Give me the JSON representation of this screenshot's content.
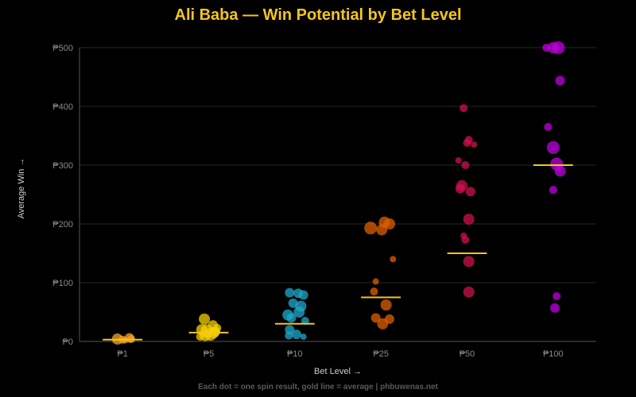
{
  "chart_data": {
    "type": "scatter",
    "title": "Ali Baba — Win Potential by Bet Level",
    "xlabel": "Bet Level →",
    "ylabel": "Average Win →",
    "footer": "Each dot = one spin result, gold line = average | phbuwenas.net",
    "ylim": [
      0,
      500
    ],
    "yticks": [
      "₱0",
      "₱100",
      "₱200",
      "₱300",
      "₱400",
      "₱500"
    ],
    "ytick_values": [
      0,
      100,
      200,
      300,
      400,
      500
    ],
    "grid": true,
    "average_line_color": "#f5c518",
    "categories": [
      {
        "label": "₱1",
        "color": "#f5a623",
        "average": 3,
        "points": [
          [
            -0.06,
            4,
            7
          ],
          [
            0.0,
            3,
            5
          ],
          [
            0.08,
            6,
            6
          ],
          [
            0.1,
            4,
            5
          ],
          [
            0.03,
            2,
            4
          ]
        ]
      },
      {
        "label": "₱5",
        "color": "#f5d000",
        "average": 15,
        "points": [
          [
            -0.05,
            38,
            7
          ],
          [
            0.05,
            28,
            6
          ],
          [
            0.1,
            23,
            5
          ],
          [
            -0.08,
            20,
            7
          ],
          [
            -0.02,
            18,
            8
          ],
          [
            0.06,
            15,
            7
          ],
          [
            0.02,
            12,
            8
          ],
          [
            -0.04,
            10,
            7
          ],
          [
            0.08,
            17,
            6
          ],
          [
            -0.1,
            8,
            5
          ]
        ]
      },
      {
        "label": "₱10",
        "color": "#1fa8c9",
        "average": 30,
        "points": [
          [
            -0.06,
            83,
            6
          ],
          [
            0.04,
            82,
            6
          ],
          [
            0.1,
            79,
            6
          ],
          [
            -0.02,
            65,
            6
          ],
          [
            0.07,
            60,
            7
          ],
          [
            0.05,
            50,
            7
          ],
          [
            -0.08,
            45,
            7
          ],
          [
            -0.04,
            40,
            6
          ],
          [
            0.12,
            35,
            5
          ],
          [
            -0.06,
            20,
            6
          ],
          [
            0.02,
            12,
            6
          ],
          [
            -0.07,
            10,
            5
          ],
          [
            0.1,
            8,
            4
          ]
        ]
      },
      {
        "label": "₱25",
        "color": "#e06000",
        "average": 75,
        "points": [
          [
            -0.12,
            193,
            8
          ],
          [
            0.04,
            203,
            7
          ],
          [
            0.1,
            200,
            7
          ],
          [
            0.01,
            190,
            7
          ],
          [
            0.14,
            140,
            4
          ],
          [
            -0.06,
            102,
            4
          ],
          [
            -0.08,
            85,
            5
          ],
          [
            0.06,
            62,
            7
          ],
          [
            -0.06,
            40,
            6
          ],
          [
            0.1,
            38,
            6
          ],
          [
            0.02,
            30,
            7
          ]
        ]
      },
      {
        "label": "₱50",
        "color": "#d0104c",
        "average": 150,
        "points": [
          [
            -0.04,
            397,
            5
          ],
          [
            0.02,
            343,
            5
          ],
          [
            0.0,
            338,
            5
          ],
          [
            0.08,
            335,
            4
          ],
          [
            -0.1,
            308,
            4
          ],
          [
            -0.02,
            300,
            5
          ],
          [
            -0.06,
            265,
            7
          ],
          [
            -0.08,
            260,
            6
          ],
          [
            0.04,
            255,
            6
          ],
          [
            0.02,
            208,
            7
          ],
          [
            -0.04,
            180,
            4
          ],
          [
            -0.02,
            173,
            5
          ],
          [
            0.02,
            136,
            7
          ],
          [
            0.02,
            84,
            7
          ]
        ]
      },
      {
        "label": "₱100",
        "color": "#c000e0",
        "average": 300,
        "points": [
          [
            -0.08,
            500,
            5
          ],
          [
            0.0,
            500,
            7
          ],
          [
            0.06,
            500,
            8
          ],
          [
            0.08,
            444,
            6
          ],
          [
            -0.06,
            365,
            5
          ],
          [
            0.0,
            330,
            8
          ],
          [
            0.04,
            302,
            8
          ],
          [
            0.08,
            290,
            7
          ],
          [
            0.0,
            258,
            5
          ],
          [
            0.04,
            77,
            5
          ],
          [
            0.02,
            57,
            6
          ]
        ]
      }
    ]
  }
}
